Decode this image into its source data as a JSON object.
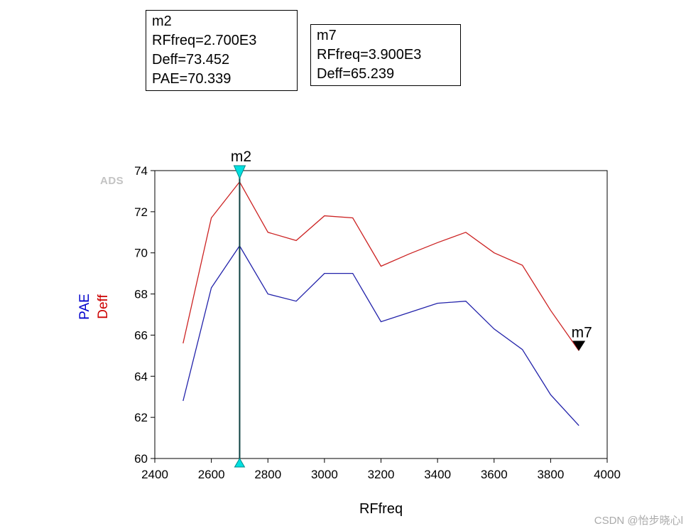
{
  "marker_boxes": {
    "m2": {
      "lines": [
        "m2",
        "RFfreq=2.700E3",
        "Deff=73.452",
        "PAE=70.339"
      ]
    },
    "m7": {
      "lines": [
        "m7",
        "RFfreq=3.900E3",
        "Deff=65.239"
      ]
    }
  },
  "watermarks": {
    "ads": "ADS",
    "csdn": "CSDN @怡步晓心l"
  },
  "chart_data": {
    "type": "line",
    "title": "",
    "xlabel": "RFfreq",
    "x": [
      2500,
      2600,
      2700,
      2800,
      2900,
      3000,
      3100,
      3200,
      3300,
      3400,
      3500,
      3600,
      3700,
      3800,
      3900
    ],
    "series": [
      {
        "name": "Deff",
        "color": "#cc2222",
        "values": [
          65.6,
          71.7,
          73.452,
          71.0,
          70.6,
          71.8,
          71.7,
          69.35,
          69.95,
          70.5,
          71.0,
          70.0,
          69.4,
          67.2,
          65.239
        ]
      },
      {
        "name": "PAE",
        "color": "#2222aa",
        "values": [
          62.8,
          68.3,
          70.339,
          68.0,
          67.65,
          69.0,
          69.0,
          66.65,
          67.1,
          67.55,
          67.65,
          66.3,
          65.3,
          63.1,
          61.6
        ]
      }
    ],
    "xlim": [
      2400,
      4000
    ],
    "ylim": [
      60,
      74
    ],
    "xticks": [
      2400,
      2600,
      2800,
      3000,
      3200,
      3400,
      3600,
      3800,
      4000
    ],
    "yticks": [
      60,
      62,
      64,
      66,
      68,
      70,
      72,
      74
    ],
    "grid": false,
    "legend": "none",
    "y_axis_titles": [
      {
        "text": "PAE",
        "color": "#0000cc"
      },
      {
        "text": "Deff",
        "color": "#cc0000"
      }
    ],
    "markers": [
      {
        "id": "m2",
        "label": "m2",
        "type": "vline",
        "x": 2700,
        "fill": "#00e0e0",
        "outline": "#008b8b",
        "line_color": "#0d4040"
      },
      {
        "id": "m7",
        "label": "m7",
        "type": "point",
        "x": 3900,
        "y": 65.239,
        "fill": "#000000",
        "outline": "#000000",
        "line_color": "#000000"
      }
    ]
  }
}
